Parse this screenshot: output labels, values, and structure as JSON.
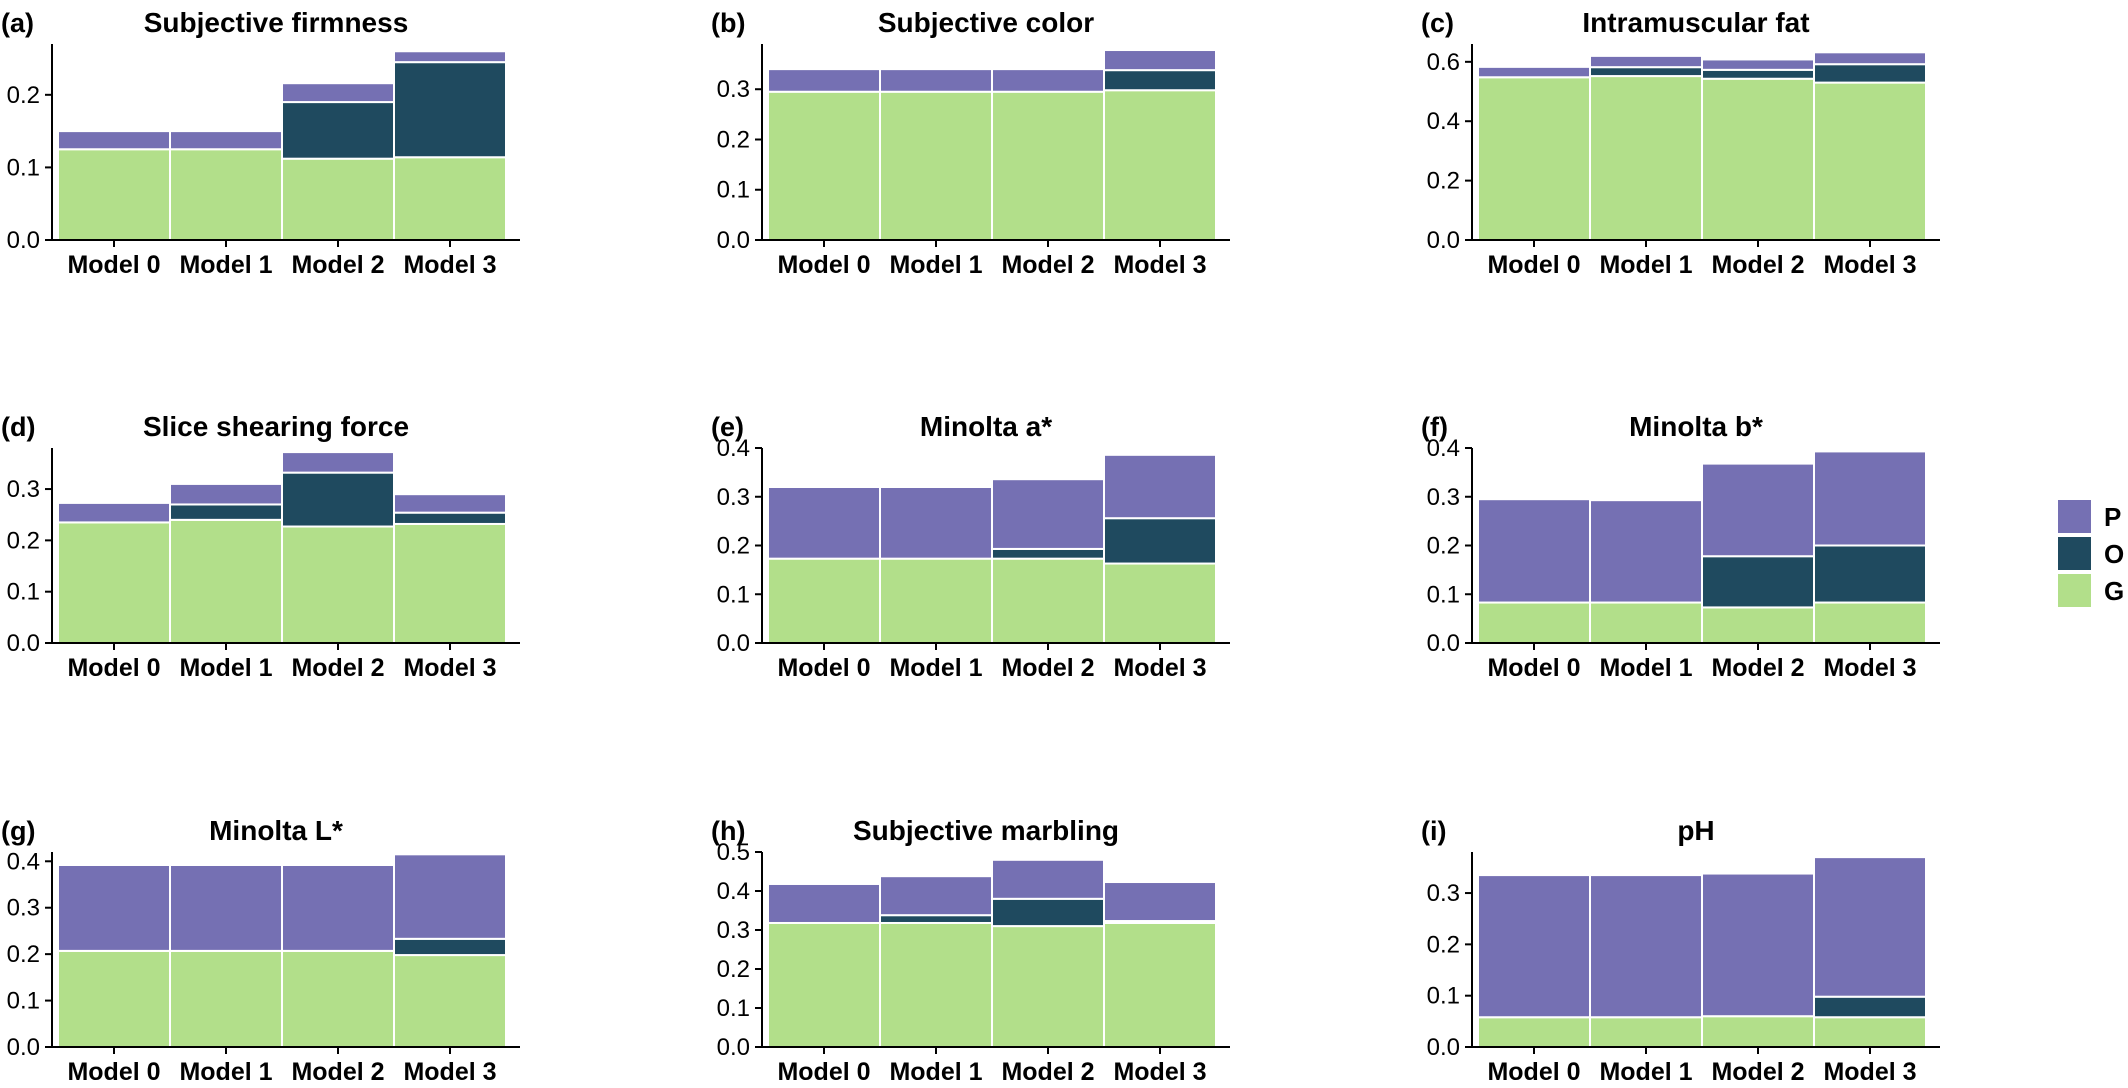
{
  "colors": {
    "P": "#7570b3",
    "O": "#1f4a5f",
    "G": "#b2df8a",
    "axis": "#000000",
    "separator": "#ffffff"
  },
  "legend": {
    "items": [
      {
        "key": "P",
        "label": "P"
      },
      {
        "key": "O",
        "label": "O"
      },
      {
        "key": "G",
        "label": "G"
      }
    ]
  },
  "chart_data": [
    {
      "type": "bar",
      "stacked": true,
      "tag": "(a)",
      "title": "Subjective firmness",
      "categories": [
        "Model 0",
        "Model 1",
        "Model 2",
        "Model 3"
      ],
      "ylim": [
        0,
        0.27
      ],
      "yticks": [
        "0.0",
        "0.1",
        "0.2"
      ],
      "series": [
        {
          "name": "G",
          "values": [
            0.125,
            0.125,
            0.112,
            0.114
          ]
        },
        {
          "name": "O",
          "values": [
            0.0,
            0.0,
            0.078,
            0.131
          ]
        },
        {
          "name": "P",
          "values": [
            0.025,
            0.025,
            0.026,
            0.015
          ]
        }
      ]
    },
    {
      "type": "bar",
      "stacked": true,
      "tag": "(b)",
      "title": "Subjective color",
      "categories": [
        "Model 0",
        "Model 1",
        "Model 2",
        "Model 3"
      ],
      "ylim": [
        0,
        0.39
      ],
      "yticks": [
        "0.0",
        "0.1",
        "0.2",
        "0.3"
      ],
      "series": [
        {
          "name": "G",
          "values": [
            0.295,
            0.295,
            0.295,
            0.298
          ]
        },
        {
          "name": "O",
          "values": [
            0.0,
            0.0,
            0.0,
            0.04
          ]
        },
        {
          "name": "P",
          "values": [
            0.045,
            0.045,
            0.045,
            0.04
          ]
        }
      ]
    },
    {
      "type": "bar",
      "stacked": true,
      "tag": "(c)",
      "title": "Intramuscular fat",
      "categories": [
        "Model 0",
        "Model 1",
        "Model 2",
        "Model 3"
      ],
      "ylim": [
        0,
        0.66
      ],
      "yticks": [
        "0.0",
        "0.2",
        "0.4",
        "0.6"
      ],
      "series": [
        {
          "name": "G",
          "values": [
            0.548,
            0.552,
            0.543,
            0.53
          ]
        },
        {
          "name": "O",
          "values": [
            0.0,
            0.03,
            0.03,
            0.062
          ]
        },
        {
          "name": "P",
          "values": [
            0.035,
            0.038,
            0.035,
            0.04
          ]
        }
      ]
    },
    {
      "type": "bar",
      "stacked": true,
      "tag": "(d)",
      "title": "Slice shearing force",
      "categories": [
        "Model 0",
        "Model 1",
        "Model 2",
        "Model 3"
      ],
      "ylim": [
        0,
        0.38
      ],
      "yticks": [
        "0.0",
        "0.1",
        "0.2",
        "0.3"
      ],
      "series": [
        {
          "name": "G",
          "values": [
            0.235,
            0.24,
            0.227,
            0.232
          ]
        },
        {
          "name": "O",
          "values": [
            0.0,
            0.03,
            0.105,
            0.022
          ]
        },
        {
          "name": "P",
          "values": [
            0.038,
            0.04,
            0.04,
            0.036
          ]
        }
      ]
    },
    {
      "type": "bar",
      "stacked": true,
      "tag": "(e)",
      "title": "Minolta a*",
      "categories": [
        "Model 0",
        "Model 1",
        "Model 2",
        "Model 3"
      ],
      "ylim": [
        0,
        0.4
      ],
      "yticks": [
        "0.0",
        "0.1",
        "0.2",
        "0.3",
        "0.4"
      ],
      "series": [
        {
          "name": "G",
          "values": [
            0.173,
            0.173,
            0.173,
            0.163
          ]
        },
        {
          "name": "O",
          "values": [
            0.0,
            0.0,
            0.02,
            0.093
          ]
        },
        {
          "name": "P",
          "values": [
            0.147,
            0.147,
            0.143,
            0.13
          ]
        }
      ]
    },
    {
      "type": "bar",
      "stacked": true,
      "tag": "(f)",
      "title": "Minolta b*",
      "categories": [
        "Model 0",
        "Model 1",
        "Model 2",
        "Model 3"
      ],
      "ylim": [
        0,
        0.4
      ],
      "yticks": [
        "0.0",
        "0.1",
        "0.2",
        "0.3",
        "0.4"
      ],
      "series": [
        {
          "name": "G",
          "values": [
            0.083,
            0.083,
            0.073,
            0.083
          ]
        },
        {
          "name": "O",
          "values": [
            0.0,
            0.0,
            0.105,
            0.117
          ]
        },
        {
          "name": "P",
          "values": [
            0.212,
            0.21,
            0.19,
            0.193
          ]
        }
      ]
    },
    {
      "type": "bar",
      "stacked": true,
      "tag": "(g)",
      "title": "Minolta L*",
      "categories": [
        "Model 0",
        "Model 1",
        "Model 2",
        "Model 3"
      ],
      "ylim": [
        0,
        0.42
      ],
      "yticks": [
        "0.0",
        "0.1",
        "0.2",
        "0.3",
        "0.4"
      ],
      "series": [
        {
          "name": "G",
          "values": [
            0.207,
            0.207,
            0.207,
            0.198
          ]
        },
        {
          "name": "O",
          "values": [
            0.0,
            0.0,
            0.0,
            0.035
          ]
        },
        {
          "name": "P",
          "values": [
            0.185,
            0.185,
            0.185,
            0.182
          ]
        }
      ]
    },
    {
      "type": "bar",
      "stacked": true,
      "tag": "(h)",
      "title": "Subjective marbling",
      "categories": [
        "Model 0",
        "Model 1",
        "Model 2",
        "Model 3"
      ],
      "ylim": [
        0,
        0.5
      ],
      "yticks": [
        "0.0",
        "0.1",
        "0.2",
        "0.3",
        "0.4",
        "0.5"
      ],
      "series": [
        {
          "name": "G",
          "values": [
            0.318,
            0.318,
            0.31,
            0.318
          ]
        },
        {
          "name": "O",
          "values": [
            0.0,
            0.02,
            0.07,
            0.005
          ]
        },
        {
          "name": "P",
          "values": [
            0.1,
            0.1,
            0.1,
            0.1
          ]
        }
      ]
    },
    {
      "type": "bar",
      "stacked": true,
      "tag": "(i)",
      "title": "pH",
      "categories": [
        "Model 0",
        "Model 1",
        "Model 2",
        "Model 3"
      ],
      "ylim": [
        0,
        0.38
      ],
      "yticks": [
        "0.0",
        "0.1",
        "0.2",
        "0.3"
      ],
      "series": [
        {
          "name": "G",
          "values": [
            0.058,
            0.058,
            0.06,
            0.058
          ]
        },
        {
          "name": "O",
          "values": [
            0.0,
            0.0,
            0.0,
            0.04
          ]
        },
        {
          "name": "P",
          "values": [
            0.277,
            0.277,
            0.278,
            0.272
          ]
        }
      ]
    }
  ]
}
